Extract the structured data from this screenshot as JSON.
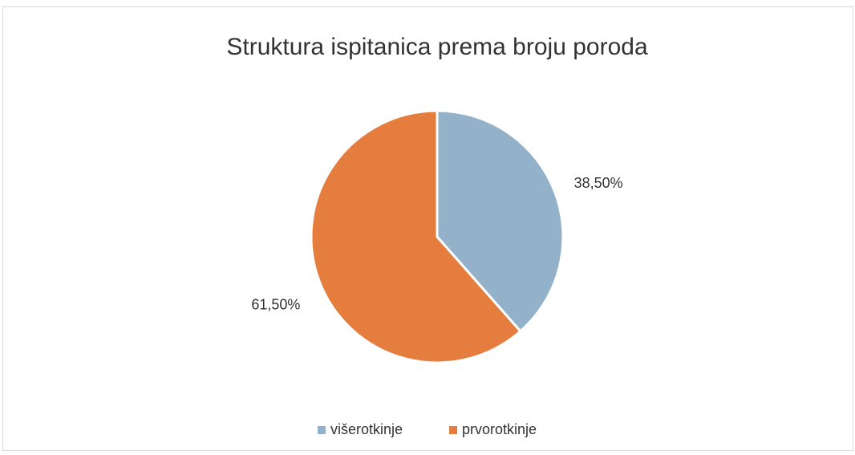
{
  "chart_data": {
    "type": "pie",
    "title": "Struktura ispitanica prema broju poroda",
    "categories": [
      "višerotkinje",
      "prvorotkinje"
    ],
    "values": [
      38.5,
      61.5
    ],
    "value_labels": [
      "38,50%",
      "61,50%"
    ],
    "colors": [
      "#94b1ca",
      "#e47d3e"
    ],
    "legend": "bottom"
  }
}
